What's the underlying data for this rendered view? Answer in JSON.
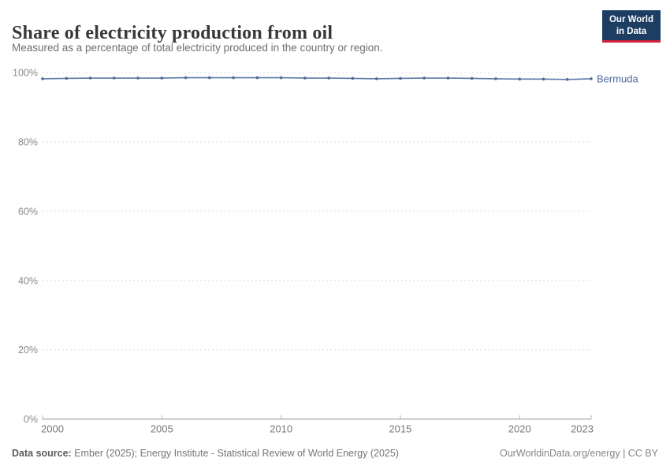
{
  "header": {
    "title": "Share of electricity production from oil",
    "subtitle": "Measured as a percentage of total electricity produced in the country or region.",
    "logo": {
      "line1": "Our World",
      "line2": "in Data",
      "background_color": "#1d3d63",
      "bar_color": "#cf2437"
    }
  },
  "chart_data": {
    "type": "line",
    "title": "Share of electricity production from oil",
    "xlabel": "",
    "ylabel": "",
    "xlim": [
      2000,
      2023
    ],
    "ylim": [
      0,
      100
    ],
    "x_ticks": [
      2000,
      2005,
      2010,
      2015,
      2020,
      2023
    ],
    "y_ticks": [
      0,
      20,
      40,
      60,
      80,
      100
    ],
    "y_tick_suffix": "%",
    "grid": "horizontal-dashed",
    "legend_position": "end-of-line-label",
    "series": [
      {
        "name": "Bermuda",
        "color": "#4C6A9C",
        "x": [
          2000,
          2001,
          2002,
          2003,
          2004,
          2005,
          2006,
          2007,
          2008,
          2009,
          2010,
          2011,
          2012,
          2013,
          2014,
          2015,
          2016,
          2017,
          2018,
          2019,
          2020,
          2021,
          2022,
          2023
        ],
        "values": [
          98.2,
          98.3,
          98.4,
          98.4,
          98.4,
          98.4,
          98.5,
          98.5,
          98.5,
          98.5,
          98.5,
          98.4,
          98.4,
          98.3,
          98.2,
          98.3,
          98.4,
          98.4,
          98.3,
          98.2,
          98.1,
          98.1,
          98.0,
          98.2
        ]
      }
    ]
  },
  "footer": {
    "source_label": "Data source:",
    "source_text": " Ember (2025); Energy Institute - Statistical Review of World Energy (2025)",
    "rights": "OurWorldinData.org/energy | CC BY"
  },
  "colors": {
    "gridline": "#dcdcdc",
    "axis": "#8f8f8f",
    "tick": "#b5b5b5",
    "axis_label": "#8a8a8a"
  }
}
